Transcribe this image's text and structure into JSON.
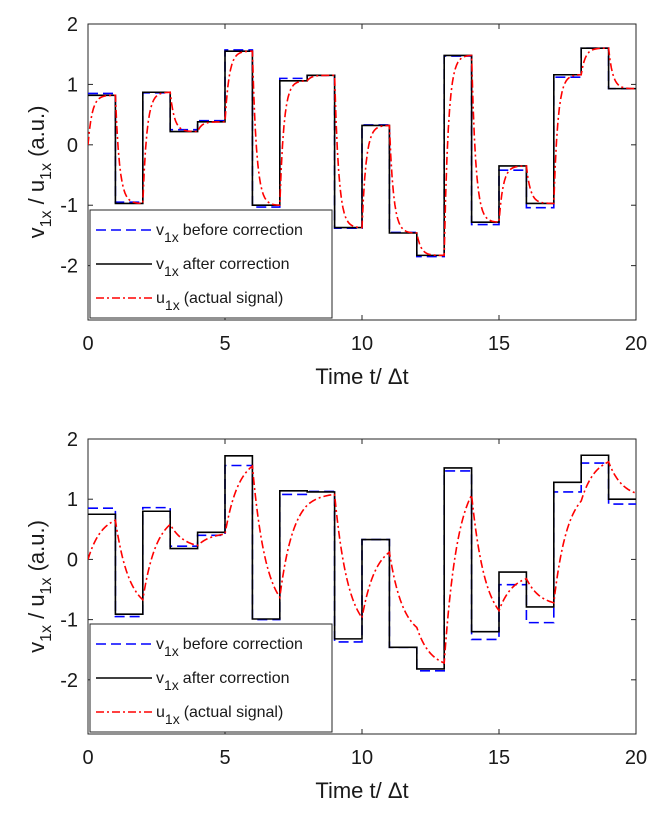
{
  "chart_data": [
    {
      "type": "line",
      "xlabel": "Time t/ Δt",
      "ylabel": {
        "v": "v",
        "sub1": "1x",
        "sep": " / u",
        "sub2": "1x",
        "unit": " (a.u.)"
      },
      "xlim": [
        0,
        20
      ],
      "ylim": [
        -2.9,
        2
      ],
      "xticks": [
        0,
        5,
        10,
        15,
        20
      ],
      "yticks": [
        2,
        1,
        0,
        -1,
        -2
      ],
      "grid": false,
      "legend_position": "bottom-left",
      "series": [
        {
          "name": "v before correction",
          "legend_var": "v",
          "legend_sub": "1x",
          "legend_text": "before correction",
          "style": "dashed",
          "color": "#0000ff",
          "kind": "step",
          "values": [
            0.85,
            -0.95,
            0.86,
            0.25,
            0.4,
            1.57,
            -1.03,
            1.1,
            1.15,
            -1.38,
            0.33,
            -1.45,
            -1.85,
            1.47,
            -1.32,
            -0.42,
            -1.04,
            1.12,
            1.6,
            0.93
          ]
        },
        {
          "name": "v after correction",
          "legend_var": "v",
          "legend_sub": "1x",
          "legend_text": "after correction",
          "style": "solid",
          "color": "#000000",
          "kind": "step",
          "values": [
            0.82,
            -0.97,
            0.87,
            0.22,
            0.38,
            1.55,
            -1.0,
            1.06,
            1.15,
            -1.37,
            0.32,
            -1.46,
            -1.83,
            1.48,
            -1.28,
            -0.35,
            -0.97,
            1.16,
            1.6,
            0.93
          ]
        },
        {
          "name": "u (actual signal)",
          "legend_var": "u",
          "legend_sub": "1x",
          "legend_text": "(actual signal)",
          "style": "dashdot",
          "color": "#ff0000",
          "kind": "smooth",
          "values": [
            0,
            0.82,
            -0.97,
            0.87,
            0.22,
            0.38,
            1.55,
            -1.0,
            1.06,
            1.15,
            -1.37,
            0.32,
            -1.46,
            -1.83,
            1.48,
            -1.28,
            -0.35,
            -0.97,
            1.16,
            1.6,
            0.93
          ]
        }
      ]
    },
    {
      "type": "line",
      "xlabel": "Time t/ Δt",
      "ylabel": {
        "v": "v",
        "sub1": "1x",
        "sep": " / u",
        "sub2": "1x",
        "unit": " (a.u.)"
      },
      "xlim": [
        0,
        20
      ],
      "ylim": [
        -2.9,
        2
      ],
      "xticks": [
        0,
        5,
        10,
        15,
        20
      ],
      "yticks": [
        2,
        1,
        0,
        -1,
        -2
      ],
      "grid": false,
      "legend_position": "bottom-left",
      "series": [
        {
          "name": "v before correction",
          "legend_var": "v",
          "legend_sub": "1x",
          "legend_text": "before correction",
          "style": "dashed",
          "color": "#0000ff",
          "kind": "step",
          "values": [
            0.85,
            -0.95,
            0.86,
            0.22,
            0.4,
            1.56,
            -1.0,
            1.08,
            1.13,
            -1.37,
            0.33,
            -1.46,
            -1.85,
            1.47,
            -1.33,
            -0.42,
            -1.05,
            1.12,
            1.6,
            0.92
          ]
        },
        {
          "name": "v after correction",
          "legend_var": "v",
          "legend_sub": "1x",
          "legend_text": "after correction",
          "style": "solid",
          "color": "#000000",
          "kind": "step",
          "values": [
            0.75,
            -0.91,
            0.8,
            0.18,
            0.45,
            1.72,
            -0.99,
            1.14,
            1.12,
            -1.32,
            0.33,
            -1.46,
            -1.82,
            1.52,
            -1.2,
            -0.21,
            -0.79,
            1.28,
            1.73,
            1.0
          ]
        },
        {
          "name": "u (actual signal)",
          "legend_var": "u",
          "legend_sub": "1x",
          "legend_text": "(actual signal)",
          "style": "dashdot",
          "color": "#ff0000",
          "kind": "smooth",
          "values": [
            0,
            0.65,
            -0.67,
            0.58,
            0.23,
            0.42,
            1.55,
            -0.63,
            0.9,
            1.08,
            -0.97,
            0.12,
            -1.13,
            -1.72,
            1.07,
            -0.85,
            -0.32,
            -0.72,
            0.97,
            1.62,
            1.1
          ]
        }
      ]
    }
  ]
}
